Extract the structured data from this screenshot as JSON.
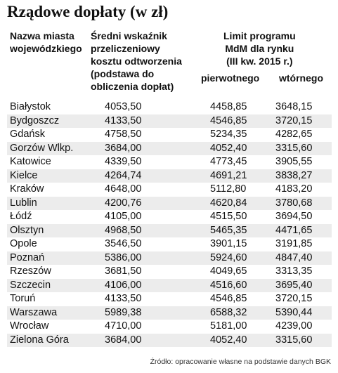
{
  "title": "Rządowe dopłaty (w zł)",
  "header": {
    "city": [
      "Nazwa miasta",
      "wojewódzkiego"
    ],
    "average": [
      "Średni wskaźnik",
      "przeliczeniowy",
      "kosztu odtworzenia",
      "(podstawa do",
      "obliczenia dopłat)"
    ],
    "limit": [
      "Limit programu",
      "MdM dla rynku",
      "(III kw. 2015 r.)"
    ],
    "primary": "pierwotnego",
    "secondary": "wtórnego"
  },
  "table": {
    "rows": [
      [
        "Białystok",
        "4053,50",
        "4458,85",
        "3648,15"
      ],
      [
        "Bydgoszcz",
        "4133,50",
        "4546,85",
        "3720,15"
      ],
      [
        "Gdańsk",
        "4758,50",
        "5234,35",
        "4282,65"
      ],
      [
        "Gorzów Wlkp.",
        "3684,00",
        "4052,40",
        "3315,60"
      ],
      [
        "Katowice",
        "4339,50",
        "4773,45",
        "3905,55"
      ],
      [
        "Kielce",
        "4264,74",
        "4691,21",
        "3838,27"
      ],
      [
        "Kraków",
        "4648,00",
        "5112,80",
        "4183,20"
      ],
      [
        "Lublin",
        "4200,76",
        "4620,84",
        "3780,68"
      ],
      [
        "Łódź",
        "4105,00",
        "4515,50",
        "3694,50"
      ],
      [
        "Olsztyn",
        "4968,50",
        "5465,35",
        "4471,65"
      ],
      [
        "Opole",
        "3546,50",
        "3901,15",
        "3191,85"
      ],
      [
        "Poznań",
        "5386,00",
        "5924,60",
        "4847,40"
      ],
      [
        "Rzeszów",
        "3681,50",
        "4049,65",
        "3313,35"
      ],
      [
        "Szczecin",
        "4106,00",
        "4516,60",
        "3695,40"
      ],
      [
        "Toruń",
        "4133,50",
        "4546,85",
        "3720,15"
      ],
      [
        "Warszawa",
        "5989,38",
        "6588,32",
        "5390,44"
      ],
      [
        "Wrocław",
        "4710,00",
        "5181,00",
        "4239,00"
      ],
      [
        "Zielona Góra",
        "3684,00",
        "4052,40",
        "3315,60"
      ]
    ]
  },
  "source": "Źródło: opracowanie własne na podstawie danych BGK"
}
